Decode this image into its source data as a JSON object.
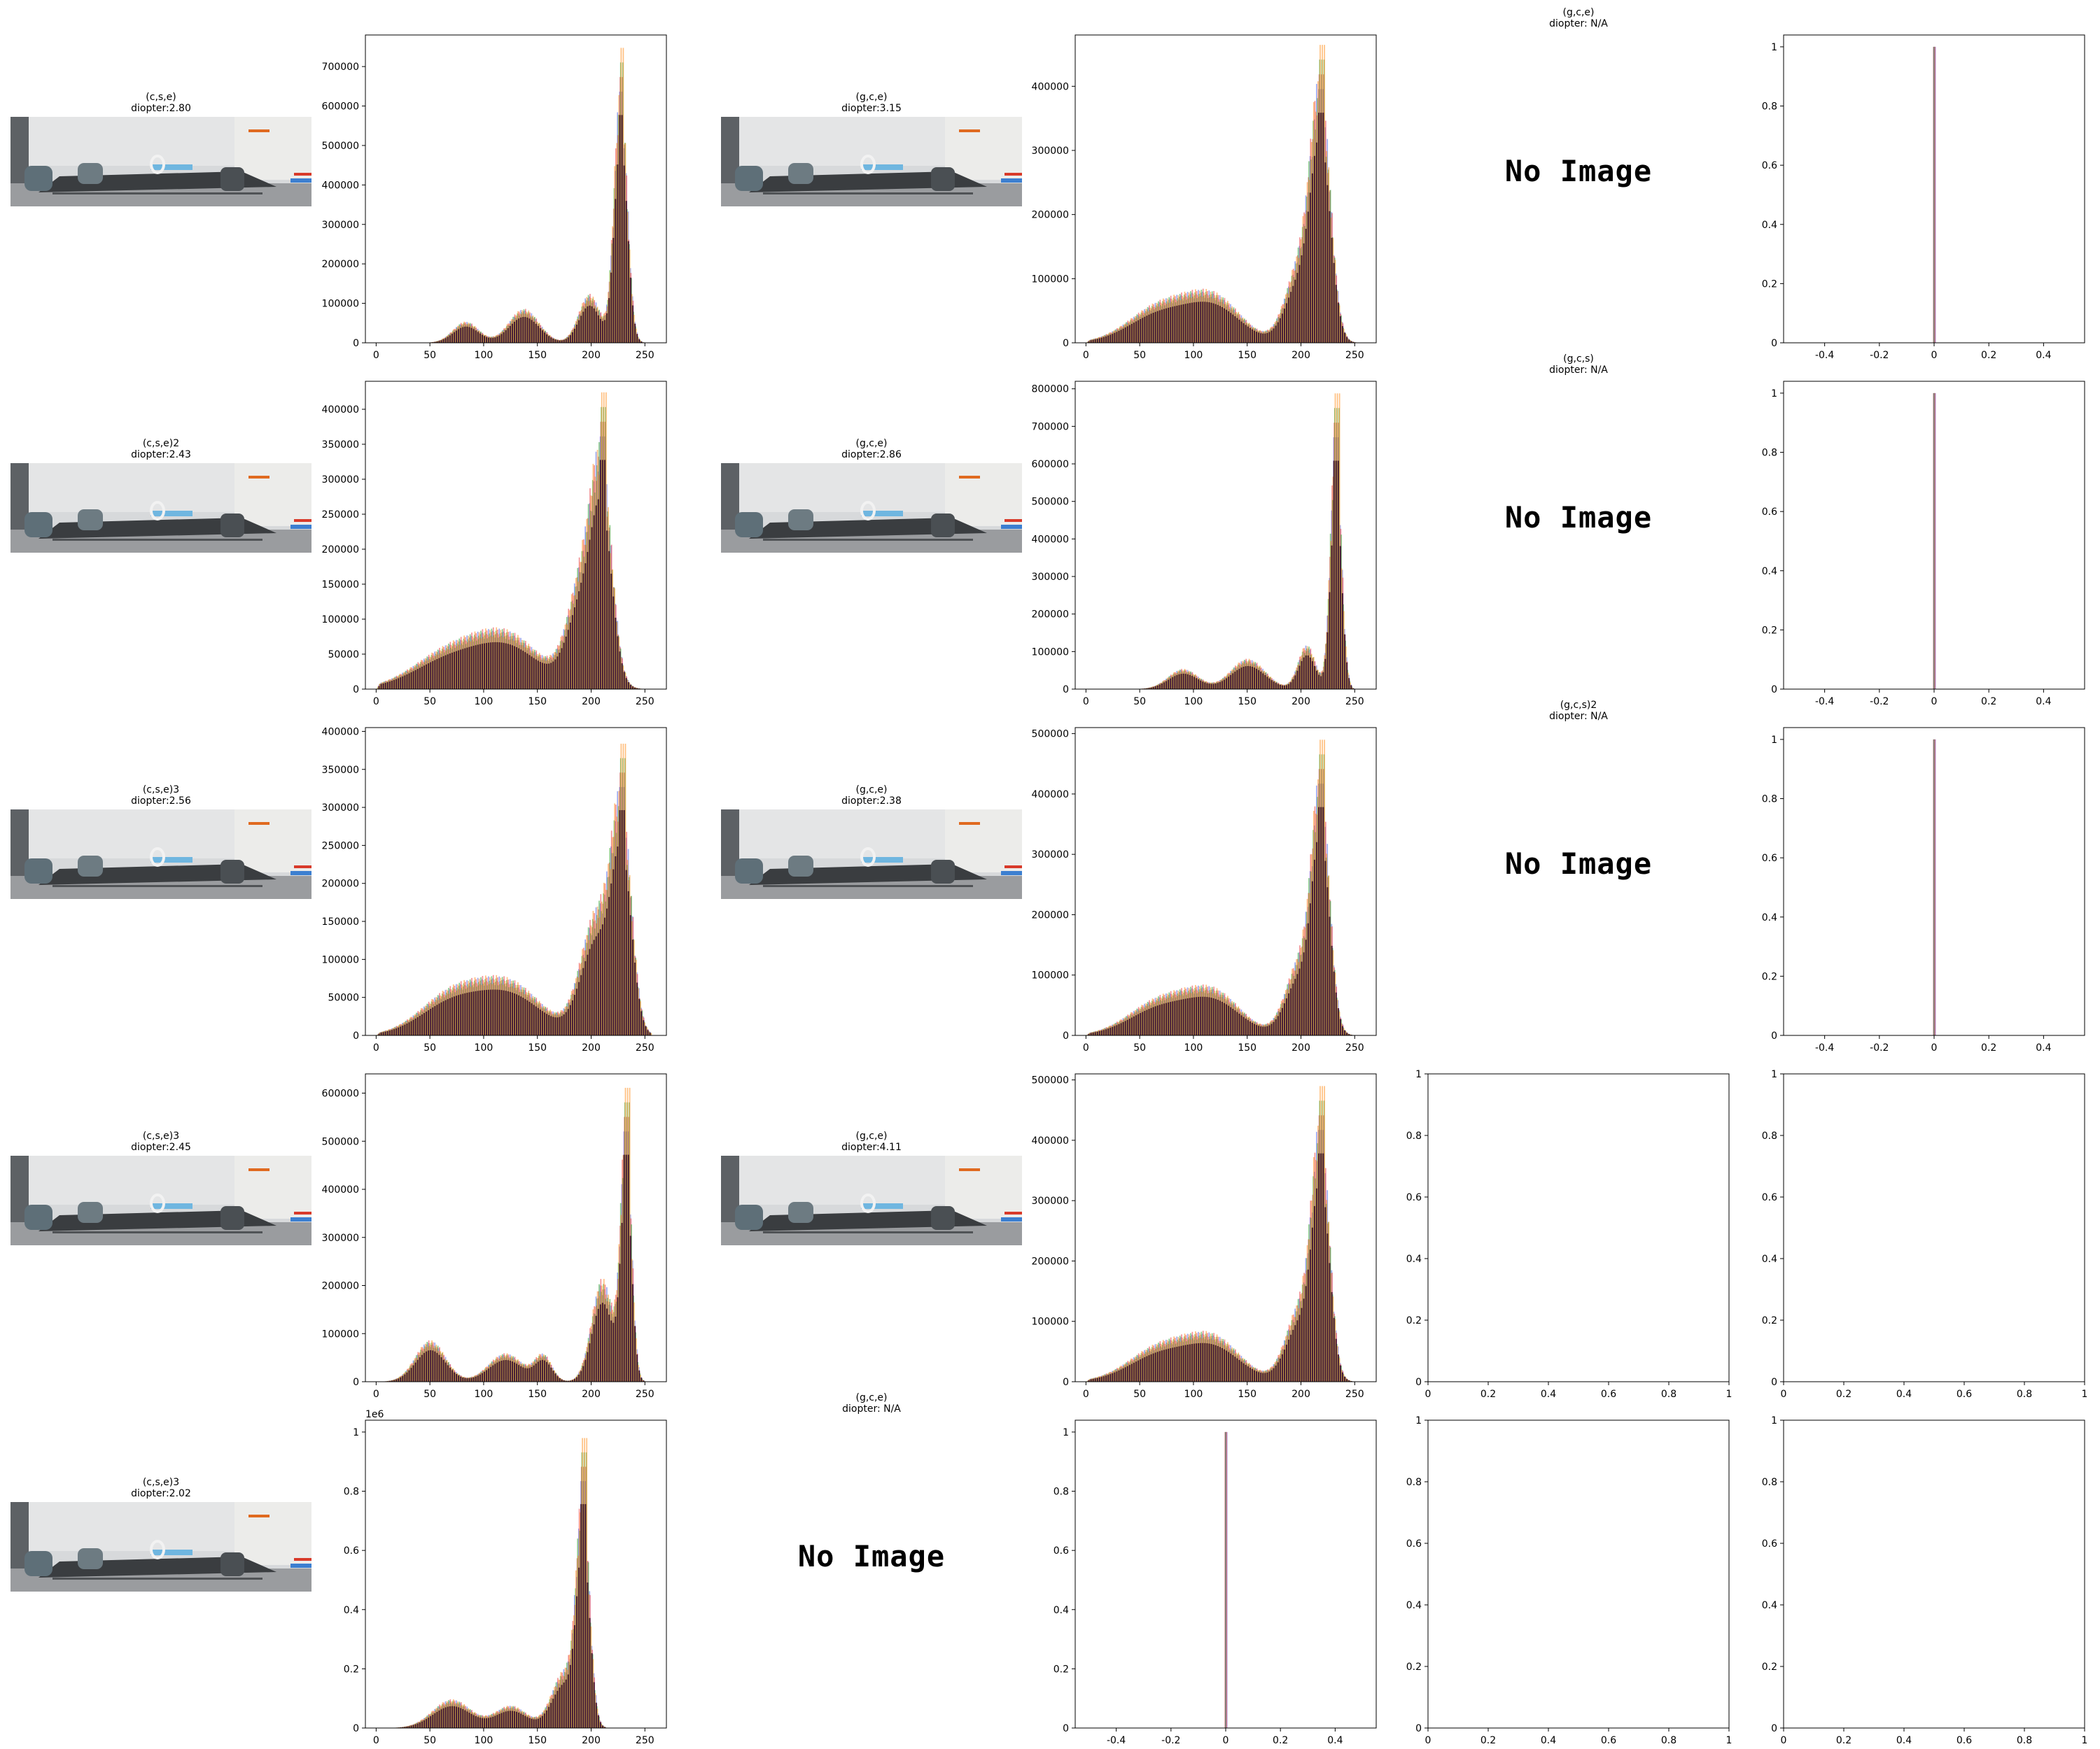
{
  "no_image_text": "No Image",
  "colors": {
    "red": "#e8393f",
    "green": "#2ca02c",
    "blue": "#4f63e6",
    "orange": "#ff8c1a",
    "purple": "#9467bd",
    "dark": "#3b1230"
  },
  "image_panels": [
    {
      "row": 0,
      "col": 0,
      "title": "(c,s,e)",
      "diopter": "diopter:2.80",
      "has_image": true
    },
    {
      "row": 0,
      "col": 2,
      "title": "(g,c,e)",
      "diopter": "diopter:3.15",
      "has_image": true
    },
    {
      "row": 0,
      "col": 4,
      "title": "(g,c,e)",
      "diopter": "diopter: N/A",
      "has_image": false
    },
    {
      "row": 1,
      "col": 0,
      "title": "(c,s,e)2",
      "diopter": "diopter:2.43",
      "has_image": true
    },
    {
      "row": 1,
      "col": 2,
      "title": "(g,c,e)",
      "diopter": "diopter:2.86",
      "has_image": true
    },
    {
      "row": 1,
      "col": 4,
      "title": "(g,c,s)",
      "diopter": "diopter: N/A",
      "has_image": false
    },
    {
      "row": 2,
      "col": 0,
      "title": "(c,s,e)3",
      "diopter": "diopter:2.56",
      "has_image": true
    },
    {
      "row": 2,
      "col": 2,
      "title": "(g,c,e)",
      "diopter": "diopter:2.38",
      "has_image": true
    },
    {
      "row": 2,
      "col": 4,
      "title": "(g,c,s)2",
      "diopter": "diopter: N/A",
      "has_image": false
    },
    {
      "row": 3,
      "col": 0,
      "title": "(c,s,e)3",
      "diopter": "diopter:2.45",
      "has_image": true
    },
    {
      "row": 3,
      "col": 2,
      "title": "(g,c,e)",
      "diopter": "diopter:4.11",
      "has_image": true
    },
    {
      "row": 4,
      "col": 0,
      "title": "(c,s,e)3",
      "diopter": "diopter:2.02",
      "has_image": true
    },
    {
      "row": 4,
      "col": 2,
      "title": "(g,c,e)",
      "diopter": "diopter: N/A",
      "has_image": false
    }
  ],
  "chart_data": [
    {
      "id": "hist-r0-c1",
      "row": 0,
      "col": 1,
      "type": "bar",
      "xlim": [
        -10,
        270
      ],
      "ylim": [
        0,
        780000
      ],
      "xticks": [
        0,
        50,
        100,
        150,
        200,
        250
      ],
      "yticks": [
        0,
        100000,
        200000,
        300000,
        400000,
        500000,
        600000,
        700000
      ],
      "curve": {
        "bumps": [
          [
            83,
            12,
            50000
          ],
          [
            137,
            14,
            80000
          ],
          [
            198,
            10,
            115000
          ],
          [
            227,
            6,
            620000
          ]
        ],
        "peak": 740000,
        "floor": 0,
        "cut": 248
      }
    },
    {
      "id": "hist-r0-c3",
      "row": 0,
      "col": 3,
      "type": "bar",
      "xlim": [
        -10,
        270
      ],
      "ylim": [
        0,
        480000
      ],
      "xticks": [
        0,
        50,
        100,
        150,
        200,
        250
      ],
      "yticks": [
        0,
        100000,
        200000,
        300000,
        400000
      ],
      "curve": {
        "bumps": [
          [
            70,
            30,
            55000
          ],
          [
            120,
            25,
            60000
          ],
          [
            200,
            14,
            120000
          ],
          [
            218,
            9,
            340000
          ]
        ],
        "peak": 460000,
        "floor": 0,
        "cut": 255
      }
    },
    {
      "id": "hist-r0-c5",
      "row": 0,
      "col": 5,
      "type": "bar",
      "xlim": [
        -0.55,
        0.55
      ],
      "ylim": [
        0,
        1.04
      ],
      "xticks": [
        -0.4,
        -0.2,
        0.0,
        0.2,
        0.4
      ],
      "yticks": [
        0.0,
        0.2,
        0.4,
        0.6,
        0.8,
        1.0
      ],
      "spike": {
        "x": 0,
        "y": 1.0
      }
    },
    {
      "id": "hist-r1-c1",
      "row": 1,
      "col": 1,
      "type": "bar",
      "xlim": [
        -10,
        270
      ],
      "ylim": [
        0,
        440000
      ],
      "xticks": [
        0,
        50,
        100,
        150,
        200,
        250
      ],
      "yticks": [
        0,
        50000,
        100000,
        150000,
        200000,
        250000,
        300000,
        350000,
        400000
      ],
      "curve": {
        "bumps": [
          [
            70,
            35,
            52000
          ],
          [
            125,
            30,
            62000
          ],
          [
            195,
            15,
            170000
          ],
          [
            210,
            9,
            220000
          ]
        ],
        "peak": 420000,
        "floor": 0,
        "cut": 258
      }
    },
    {
      "id": "hist-r1-c3",
      "row": 1,
      "col": 3,
      "type": "bar",
      "xlim": [
        -10,
        270
      ],
      "ylim": [
        0,
        820000
      ],
      "xticks": [
        0,
        50,
        100,
        150,
        200,
        250
      ],
      "yticks": [
        0,
        100000,
        200000,
        300000,
        400000,
        500000,
        600000,
        700000,
        800000
      ],
      "curve": {
        "bumps": [
          [
            90,
            14,
            50000
          ],
          [
            150,
            16,
            75000
          ],
          [
            205,
            8,
            110000
          ],
          [
            232,
            5,
            640000
          ]
        ],
        "peak": 780000,
        "floor": 0,
        "cut": 246
      }
    },
    {
      "id": "hist-r1-c5",
      "row": 1,
      "col": 5,
      "type": "bar",
      "xlim": [
        -0.55,
        0.55
      ],
      "ylim": [
        0,
        1.04
      ],
      "xticks": [
        -0.4,
        -0.2,
        0.0,
        0.2,
        0.4
      ],
      "yticks": [
        0.0,
        0.2,
        0.4,
        0.6,
        0.8,
        1.0
      ],
      "spike": {
        "x": 0,
        "y": 1.0
      }
    },
    {
      "id": "hist-r2-c1",
      "row": 2,
      "col": 1,
      "type": "bar",
      "xlim": [
        -10,
        270
      ],
      "ylim": [
        0,
        405000
      ],
      "xticks": [
        0,
        50,
        100,
        150,
        200,
        250
      ],
      "yticks": [
        0,
        50000,
        100000,
        150000,
        200000,
        250000,
        300000,
        350000,
        400000
      ],
      "curve": {
        "bumps": [
          [
            70,
            30,
            50000
          ],
          [
            125,
            30,
            60000
          ],
          [
            205,
            15,
            150000
          ],
          [
            228,
            9,
            260000
          ]
        ],
        "peak": 380000,
        "floor": 0,
        "cut": 256
      }
    },
    {
      "id": "hist-r2-c3",
      "row": 2,
      "col": 3,
      "type": "bar",
      "xlim": [
        -10,
        270
      ],
      "ylim": [
        0,
        510000
      ],
      "xticks": [
        0,
        50,
        100,
        150,
        200,
        250
      ],
      "yticks": [
        0,
        100000,
        200000,
        300000,
        400000,
        500000
      ],
      "curve": {
        "bumps": [
          [
            70,
            30,
            55000
          ],
          [
            120,
            25,
            60000
          ],
          [
            200,
            14,
            120000
          ],
          [
            218,
            8,
            360000
          ]
        ],
        "peak": 485000,
        "floor": 0,
        "cut": 255
      }
    },
    {
      "id": "hist-r2-c5",
      "row": 2,
      "col": 5,
      "type": "bar",
      "xlim": [
        -0.55,
        0.55
      ],
      "ylim": [
        0,
        1.04
      ],
      "xticks": [
        -0.4,
        -0.2,
        0.0,
        0.2,
        0.4
      ],
      "yticks": [
        0.0,
        0.2,
        0.4,
        0.6,
        0.8,
        1.0
      ],
      "spike": {
        "x": 0,
        "y": 1.0
      }
    },
    {
      "id": "hist-r3-c1",
      "row": 3,
      "col": 1,
      "type": "bar",
      "xlim": [
        -10,
        270
      ],
      "ylim": [
        0,
        640000
      ],
      "xticks": [
        0,
        50,
        100,
        150,
        200,
        250
      ],
      "yticks": [
        0,
        100000,
        200000,
        300000,
        400000,
        500000,
        600000
      ],
      "curve": {
        "bumps": [
          [
            50,
            14,
            80000
          ],
          [
            120,
            16,
            55000
          ],
          [
            155,
            8,
            50000
          ],
          [
            210,
            10,
            200000
          ],
          [
            232,
            5,
            500000
          ]
        ],
        "peak": 605000,
        "floor": 0,
        "cut": 256
      }
    },
    {
      "id": "hist-r3-c3",
      "row": 3,
      "col": 3,
      "type": "bar",
      "xlim": [
        -10,
        270
      ],
      "ylim": [
        0,
        510000
      ],
      "xticks": [
        0,
        50,
        100,
        150,
        200,
        250
      ],
      "yticks": [
        0,
        100000,
        200000,
        300000,
        400000,
        500000
      ],
      "curve": {
        "bumps": [
          [
            70,
            30,
            55000
          ],
          [
            120,
            25,
            60000
          ],
          [
            200,
            14,
            120000
          ],
          [
            218,
            8,
            360000
          ]
        ],
        "peak": 485000,
        "floor": 0,
        "cut": 255
      }
    },
    {
      "id": "empty-r3-c4",
      "row": 3,
      "col": 4,
      "type": "empty",
      "xlim": [
        0,
        1
      ],
      "ylim": [
        0,
        1
      ],
      "xticks": [
        0.0,
        0.2,
        0.4,
        0.6,
        0.8,
        1.0
      ],
      "yticks": [
        0.0,
        0.2,
        0.4,
        0.6,
        0.8,
        1.0
      ]
    },
    {
      "id": "empty-r3-c5",
      "row": 3,
      "col": 5,
      "type": "empty",
      "xlim": [
        0,
        1
      ],
      "ylim": [
        0,
        1
      ],
      "xticks": [
        0.0,
        0.2,
        0.4,
        0.6,
        0.8,
        1.0
      ],
      "yticks": [
        0.0,
        0.2,
        0.4,
        0.6,
        0.8,
        1.0
      ]
    },
    {
      "id": "hist-r4-c1",
      "row": 4,
      "col": 1,
      "type": "bar",
      "xlim": [
        -10,
        270
      ],
      "ylim": [
        0,
        1.04
      ],
      "offset_label": "1e6",
      "xticks": [
        0,
        50,
        100,
        150,
        200,
        250
      ],
      "yticks": [
        0.0,
        0.2,
        0.4,
        0.6,
        0.8,
        1.0
      ],
      "curve": {
        "bumps": [
          [
            70,
            18,
            0.09
          ],
          [
            125,
            15,
            0.07
          ],
          [
            175,
            12,
            0.18
          ],
          [
            192,
            6,
            0.7
          ]
        ],
        "peak": 0.97,
        "floor": 0,
        "cut": 212
      }
    },
    {
      "id": "hist-r4-c3",
      "row": 4,
      "col": 3,
      "type": "bar",
      "xlim": [
        -0.55,
        0.55
      ],
      "ylim": [
        0,
        1.04
      ],
      "xticks": [
        -0.4,
        -0.2,
        0.0,
        0.2,
        0.4
      ],
      "yticks": [
        0.0,
        0.2,
        0.4,
        0.6,
        0.8,
        1.0
      ],
      "spike": {
        "x": 0,
        "y": 1.0
      }
    },
    {
      "id": "empty-r4-c4",
      "row": 4,
      "col": 4,
      "type": "empty",
      "xlim": [
        0,
        1
      ],
      "ylim": [
        0,
        1
      ],
      "xticks": [
        0.0,
        0.2,
        0.4,
        0.6,
        0.8,
        1.0
      ],
      "yticks": [
        0.0,
        0.2,
        0.4,
        0.6,
        0.8,
        1.0
      ]
    },
    {
      "id": "empty-r4-c5",
      "row": 4,
      "col": 5,
      "type": "empty",
      "xlim": [
        0,
        1
      ],
      "ylim": [
        0,
        1
      ],
      "xticks": [
        0.0,
        0.2,
        0.4,
        0.6,
        0.8,
        1.0
      ],
      "yticks": [
        0.0,
        0.2,
        0.4,
        0.6,
        0.8,
        1.0
      ]
    }
  ]
}
